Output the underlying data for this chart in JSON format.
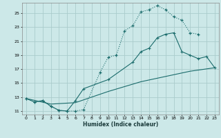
{
  "xlabel": "Humidex (Indice chaleur)",
  "bg_color": "#cce8e8",
  "grid_color": "#aacccc",
  "line_color": "#1a6b6b",
  "xlim": [
    -0.5,
    23.5
  ],
  "ylim": [
    10.5,
    26.5
  ],
  "xticks": [
    0,
    1,
    2,
    3,
    4,
    5,
    6,
    7,
    8,
    9,
    10,
    11,
    12,
    13,
    14,
    15,
    16,
    17,
    18,
    19,
    20,
    21,
    22,
    23
  ],
  "yticks": [
    11,
    13,
    15,
    17,
    19,
    21,
    23,
    25
  ],
  "curve1_x": [
    0,
    1,
    2,
    3,
    4,
    5,
    6,
    7,
    9,
    10,
    11,
    12,
    13,
    14,
    15,
    16,
    17,
    18,
    19,
    20,
    21
  ],
  "curve1_y": [
    12.8,
    12.3,
    12.5,
    11.7,
    11.1,
    11.0,
    11.0,
    11.2,
    16.5,
    18.7,
    19.0,
    22.5,
    23.2,
    25.2,
    25.5,
    26.1,
    25.5,
    24.5,
    24.0,
    22.2,
    22.0
  ],
  "curve2_x": [
    0,
    1,
    2,
    3,
    4,
    5,
    6,
    7,
    10,
    13,
    14,
    15,
    16,
    17,
    18,
    19,
    20,
    21,
    22,
    23
  ],
  "curve2_y": [
    12.8,
    12.3,
    12.5,
    11.7,
    11.1,
    11.0,
    12.5,
    14.2,
    15.5,
    18.0,
    19.5,
    20.0,
    21.5,
    22.0,
    22.2,
    19.5,
    19.0,
    18.5,
    18.8,
    17.2
  ],
  "curve3_x": [
    0,
    3,
    6,
    10,
    14,
    18,
    20,
    23
  ],
  "curve3_y": [
    12.8,
    12.0,
    12.2,
    13.8,
    15.2,
    16.2,
    16.7,
    17.2
  ]
}
